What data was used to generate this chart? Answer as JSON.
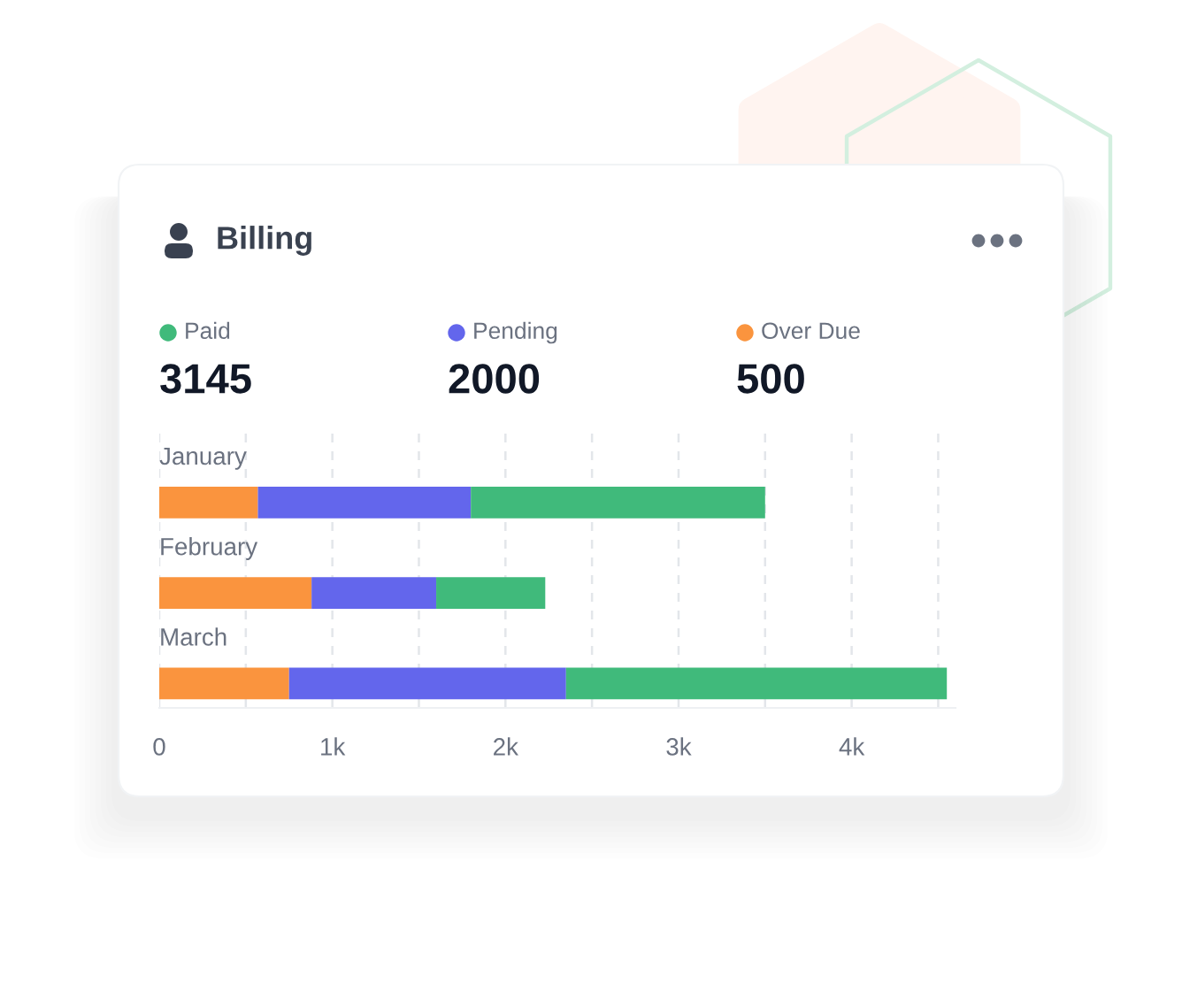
{
  "chart_data": {
    "type": "bar",
    "orientation": "horizontal",
    "stacked": true,
    "title": "Billing",
    "categories": [
      "January",
      "February",
      "March"
    ],
    "series": [
      {
        "name": "Over Due",
        "color": "#fa943e",
        "values": [
          570,
          880,
          750
        ]
      },
      {
        "name": "Pending",
        "color": "#6366ec",
        "values": [
          1230,
          720,
          1600
        ]
      },
      {
        "name": "Paid",
        "color": "#40ba7b",
        "values": [
          1700,
          630,
          2200
        ]
      }
    ],
    "xlim": [
      0,
      4600
    ],
    "xticks": [
      0,
      {
        "value": 500,
        "label": null
      },
      {
        "value": 1000,
        "label": "1k"
      },
      {
        "value": 1500,
        "label": null
      },
      {
        "value": 2000,
        "label": "2k"
      },
      {
        "value": 2500,
        "label": null
      },
      {
        "value": 3000,
        "label": "3k"
      },
      {
        "value": 3500,
        "label": null
      },
      {
        "value": 4000,
        "label": "4k"
      },
      {
        "value": 4500,
        "label": null
      }
    ],
    "grid": "x",
    "legend": "top",
    "annotations": [
      "3145",
      "2000",
      "500"
    ]
  }
}
